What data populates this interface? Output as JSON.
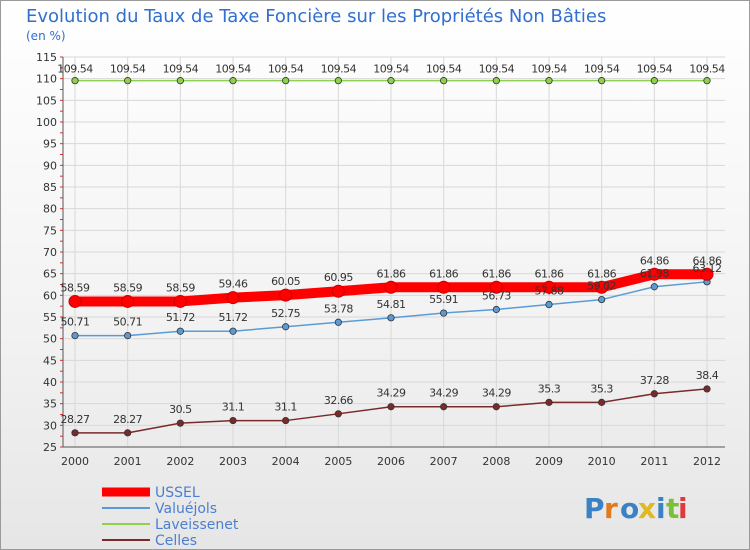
{
  "chart_data": {
    "type": "line",
    "title": "Evolution du Taux de Taxe Foncière sur les Propriétés Non Bâties",
    "ylabel": "(en %)",
    "xlabel": "",
    "categories": [
      "2000",
      "2001",
      "2002",
      "2003",
      "2004",
      "2005",
      "2006",
      "2007",
      "2008",
      "2009",
      "2010",
      "2011",
      "2012"
    ],
    "ylim": [
      25,
      115
    ],
    "yticks": [
      25,
      30,
      35,
      40,
      45,
      50,
      55,
      60,
      65,
      70,
      75,
      80,
      85,
      90,
      95,
      100,
      105,
      110,
      115
    ],
    "grid": true,
    "legend_position": "bottom-left",
    "series": [
      {
        "name": "USSEL",
        "color": "#ff0000",
        "values": [
          58.59,
          58.59,
          58.59,
          59.46,
          60.05,
          60.95,
          61.86,
          61.86,
          61.86,
          61.86,
          61.86,
          64.86,
          64.86
        ],
        "labels": [
          "58.59",
          "58.59",
          "58.59",
          "59.46",
          "60.05",
          "60.95",
          "61.86",
          "61.86",
          "61.86",
          "61.86",
          "61.86",
          "64.86",
          "64.86"
        ]
      },
      {
        "name": "Valuéjols",
        "color": "#5b9bd5",
        "values": [
          50.71,
          50.71,
          51.72,
          51.72,
          52.75,
          53.78,
          54.81,
          55.91,
          56.73,
          57.88,
          59.02,
          61.98,
          63.12
        ],
        "labels": [
          "50.71",
          "50.71",
          "51.72",
          "51.72",
          "52.75",
          "53.78",
          "54.81",
          "55.91",
          "56.73",
          "57.88",
          "59.02",
          "61.98",
          "63.12"
        ]
      },
      {
        "name": "Laveissenet",
        "color": "#8fd14f",
        "values": [
          109.54,
          109.54,
          109.54,
          109.54,
          109.54,
          109.54,
          109.54,
          109.54,
          109.54,
          109.54,
          109.54,
          109.54,
          109.54
        ],
        "labels": [
          "109.54",
          "109.54",
          "109.54",
          "109.54",
          "109.54",
          "109.54",
          "109.54",
          "109.54",
          "109.54",
          "109.54",
          "109.54",
          "109.54",
          "109.54"
        ]
      },
      {
        "name": "Celles",
        "color": "#7a2a2a",
        "values": [
          28.27,
          28.27,
          30.5,
          31.1,
          31.1,
          32.66,
          34.29,
          34.29,
          34.29,
          35.3,
          35.3,
          37.28,
          38.4
        ],
        "labels": [
          "28.27",
          "28.27",
          "30.5",
          "31.1",
          "31.1",
          "32.66",
          "34.29",
          "34.29",
          "34.29",
          "35.3",
          "35.3",
          "37.28",
          "38.4"
        ]
      }
    ]
  },
  "logo": {
    "text": "Proxiti"
  }
}
